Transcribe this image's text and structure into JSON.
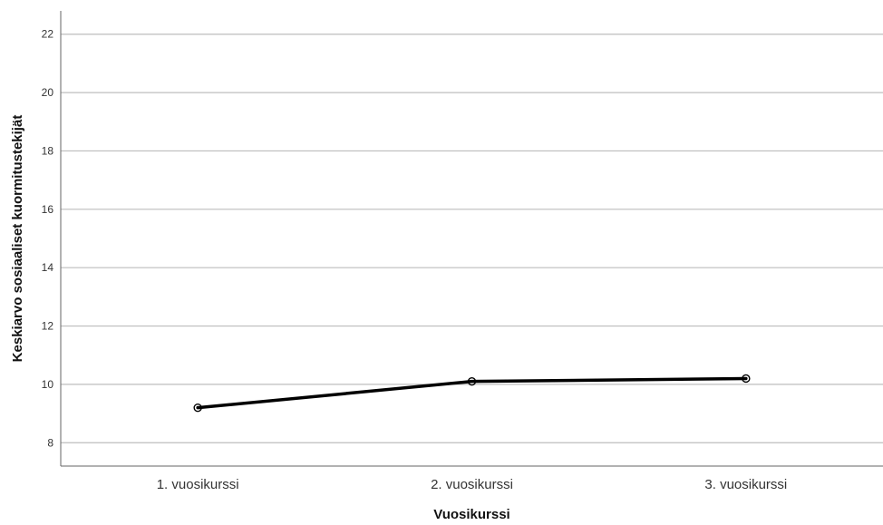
{
  "chart_data": {
    "type": "line",
    "categories": [
      "1. vuosikurssi",
      "2. vuosikurssi",
      "3. vuosikurssi"
    ],
    "series": [
      {
        "values": [
          9.2,
          10.1,
          10.2
        ]
      }
    ],
    "xlabel": "Vuosikurssi",
    "ylabel": "Keskiarvo sosiaaliset kuormitustekijät",
    "ylim": [
      7.2,
      22.8
    ],
    "yticks": [
      8,
      10,
      12,
      14,
      16,
      18,
      20,
      22
    ],
    "grid": true,
    "legend": "none",
    "line_color": "#000000",
    "marker": "hollow-circle"
  }
}
